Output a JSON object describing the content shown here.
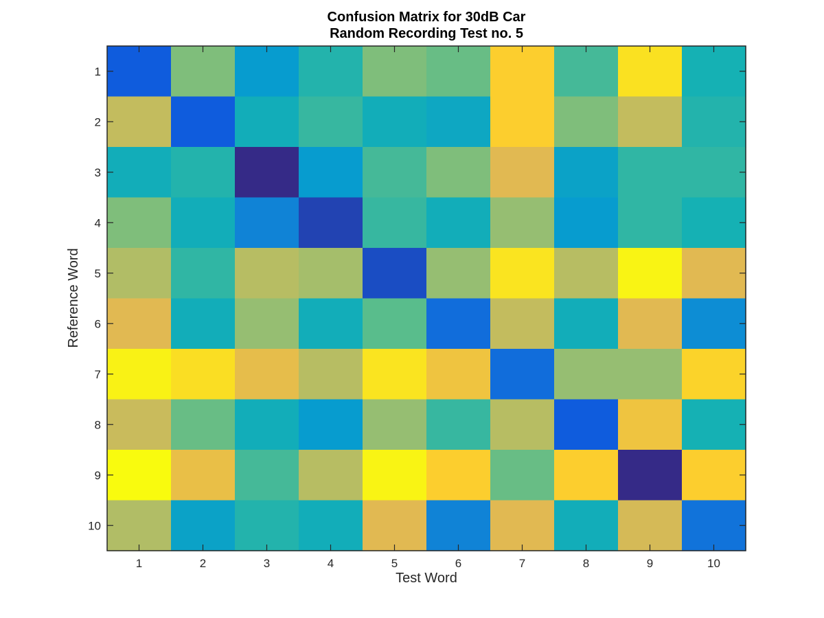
{
  "chart_data": {
    "type": "heatmap",
    "title": [
      "Confusion Matrix for 30dB Car",
      "Random Recording Test no. 5"
    ],
    "xlabel": "Test Word",
    "ylabel": "Reference Word",
    "x_categories": [
      "1",
      "2",
      "3",
      "4",
      "5",
      "6",
      "7",
      "8",
      "9",
      "10"
    ],
    "y_categories": [
      "1",
      "2",
      "3",
      "4",
      "5",
      "6",
      "7",
      "8",
      "9",
      "10"
    ],
    "colormap": "parula",
    "color_range": [
      0,
      1
    ],
    "grid": false,
    "values": [
      [
        0.1,
        0.55,
        0.3,
        0.42,
        0.55,
        0.52,
        0.8,
        0.47,
        0.87,
        0.4
      ],
      [
        0.65,
        0.1,
        0.38,
        0.45,
        0.38,
        0.35,
        0.8,
        0.55,
        0.65,
        0.42
      ],
      [
        0.38,
        0.42,
        0.0,
        0.3,
        0.47,
        0.55,
        0.7,
        0.33,
        0.44,
        0.44
      ],
      [
        0.55,
        0.38,
        0.22,
        0.05,
        0.45,
        0.38,
        0.58,
        0.3,
        0.44,
        0.4
      ],
      [
        0.62,
        0.44,
        0.63,
        0.6,
        0.07,
        0.58,
        0.88,
        0.63,
        0.96,
        0.7
      ],
      [
        0.7,
        0.38,
        0.58,
        0.38,
        0.5,
        0.15,
        0.65,
        0.38,
        0.7,
        0.25
      ],
      [
        0.95,
        0.86,
        0.72,
        0.63,
        0.88,
        0.75,
        0.15,
        0.58,
        0.58,
        0.82
      ],
      [
        0.66,
        0.52,
        0.38,
        0.3,
        0.58,
        0.45,
        0.63,
        0.1,
        0.75,
        0.4
      ],
      [
        1.0,
        0.73,
        0.47,
        0.63,
        0.96,
        0.8,
        0.52,
        0.8,
        0.0,
        0.8
      ],
      [
        0.62,
        0.33,
        0.42,
        0.38,
        0.7,
        0.22,
        0.7,
        0.38,
        0.68,
        0.17
      ]
    ]
  }
}
